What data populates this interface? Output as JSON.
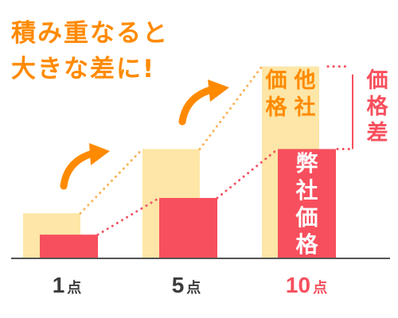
{
  "headline": {
    "line1": "積み重なると",
    "line2": "大きな差に!"
  },
  "colors": {
    "orange": "#ff8a00",
    "competitor": "#fde6a7",
    "ours": "#f74f5d",
    "axis": "#555555",
    "ours_text": "#ffffff",
    "competitor_text": "#ff8a00",
    "diff": "#f74f5d",
    "tick_regular": "#3c3c3c",
    "tick_highlight": "#f74f5d"
  },
  "chart_data": {
    "type": "bar",
    "categories": [
      "1点",
      "5点",
      "10点"
    ],
    "highlight_category_index": 2,
    "series": [
      {
        "values": [
          29,
          71,
          125
        ],
        "color": "#fde6a7"
      },
      {
        "values": [
          15,
          39,
          71
        ],
        "color": "#f74f5d"
      }
    ],
    "ylim": [
      0,
      130
    ],
    "annotations": {
      "competitor_label": "他社価格",
      "our_label": "弊社価格",
      "difference_label": "価格差"
    }
  }
}
